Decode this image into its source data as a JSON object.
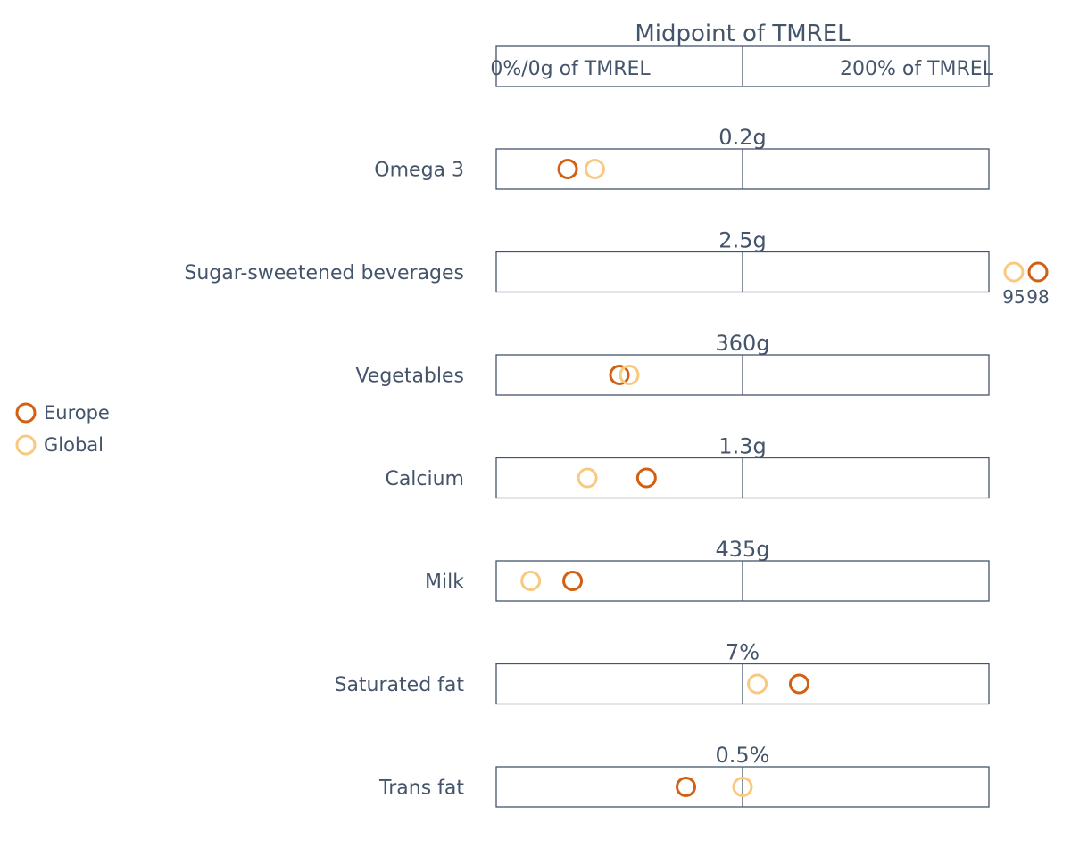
{
  "colors": {
    "europe": "#d35f13",
    "global": "#f8c97e",
    "text": "#44546a"
  },
  "chart_data": {
    "type": "scatter",
    "header": {
      "title": "Midpoint of TMREL",
      "left_label": "0%/0g of TMREL",
      "right_label": "200% of TMREL"
    },
    "x_unit": "% of TMREL",
    "xlim": [
      0,
      200
    ],
    "legend": {
      "position": "left",
      "items": [
        {
          "name": "Europe",
          "color": "#d35f13"
        },
        {
          "name": "Global",
          "color": "#f8c97e"
        }
      ]
    },
    "rows": [
      {
        "label": "Omega 3",
        "midpoint": "0.2g",
        "europe": 29,
        "global": 40
      },
      {
        "label": "Sugar-sweetened beverages",
        "midpoint": "2.5g",
        "europe": 98,
        "global": 95,
        "offscale": true,
        "europe_label": "98",
        "global_label": "95"
      },
      {
        "label": "Vegetables",
        "midpoint": "360g",
        "europe": 50,
        "global": 54
      },
      {
        "label": "Calcium",
        "midpoint": "1.3g",
        "europe": 61,
        "global": 37
      },
      {
        "label": "Milk",
        "midpoint": "435g",
        "europe": 31,
        "global": 14
      },
      {
        "label": "Saturated fat",
        "midpoint": "7%",
        "europe": 123,
        "global": 106
      },
      {
        "label": "Trans fat",
        "midpoint": "0.5%",
        "europe": 77,
        "global": 100
      }
    ]
  }
}
